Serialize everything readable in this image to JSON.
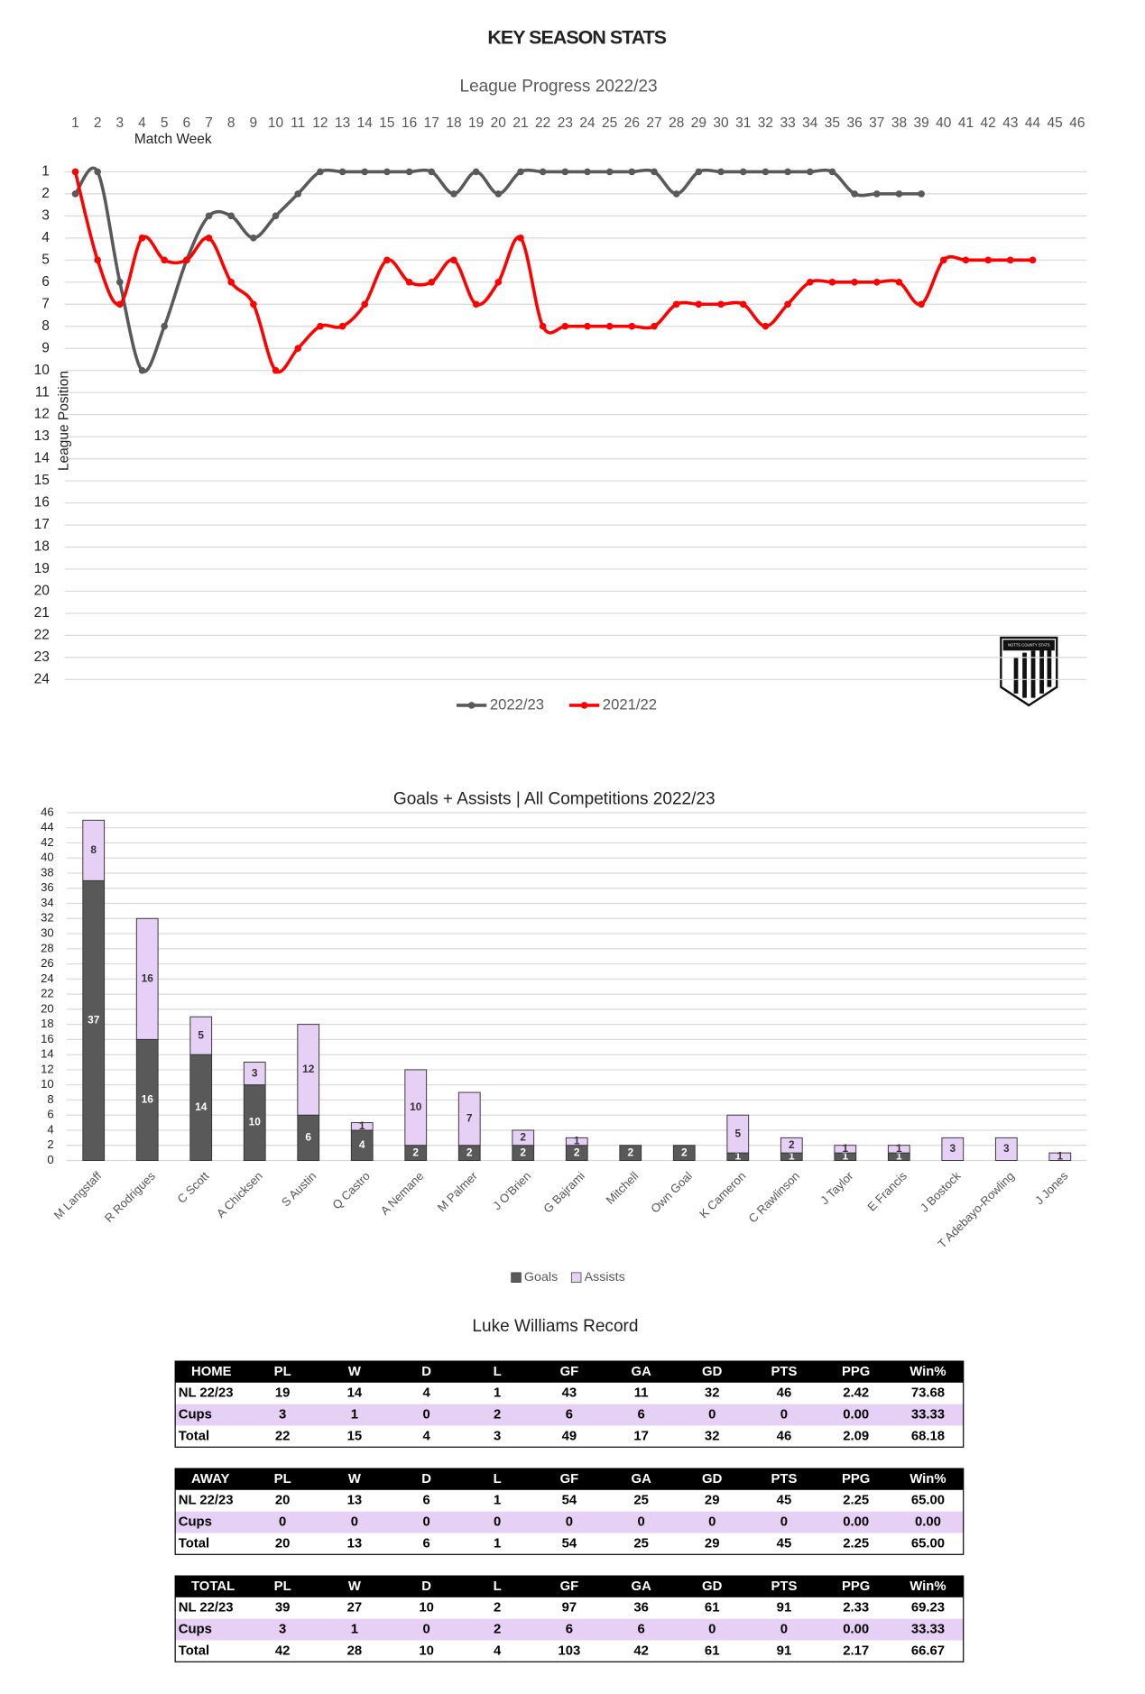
{
  "header": {
    "title": "KEY SEASON STATS"
  },
  "chart_data": [
    {
      "type": "line",
      "title": "League Progress 2022/23",
      "x_label": "Match Week",
      "y_label": "League Position",
      "categories": [
        1,
        2,
        3,
        4,
        5,
        6,
        7,
        8,
        9,
        10,
        11,
        12,
        13,
        14,
        15,
        16,
        17,
        18,
        19,
        20,
        21,
        22,
        23,
        24,
        25,
        26,
        27,
        28,
        29,
        30,
        31,
        32,
        33,
        34,
        35,
        36,
        37,
        38,
        39,
        40,
        41,
        42,
        43,
        44,
        45,
        46
      ],
      "series": [
        {
          "name": "2022/23",
          "color": "#595959",
          "values": [
            2,
            1,
            6,
            10,
            8,
            5,
            3,
            3,
            4,
            3,
            2,
            1,
            1,
            1,
            1,
            1,
            1,
            2,
            1,
            2,
            1,
            1,
            1,
            1,
            1,
            1,
            1,
            2,
            1,
            1,
            1,
            1,
            1,
            1,
            1,
            2,
            2,
            2,
            2,
            null,
            null,
            null,
            null,
            null,
            null,
            null
          ]
        },
        {
          "name": "2021/22",
          "color": "#ff0000",
          "values": [
            1,
            5,
            7,
            4,
            5,
            5,
            4,
            6,
            7,
            10,
            9,
            8,
            8,
            7,
            5,
            6,
            6,
            5,
            7,
            6,
            4,
            8,
            8,
            8,
            8,
            8,
            8,
            7,
            7,
            7,
            7,
            8,
            7,
            6,
            6,
            6,
            6,
            6,
            7,
            5,
            5,
            5,
            5,
            5,
            null,
            null
          ]
        }
      ],
      "ylim": [
        1,
        24
      ],
      "yticks": [
        1,
        2,
        3,
        4,
        5,
        6,
        7,
        8,
        9,
        10,
        11,
        12,
        13,
        14,
        15,
        16,
        17,
        18,
        19,
        20,
        21,
        22,
        23,
        24
      ],
      "y_inverted": true,
      "x_axis_position": "top",
      "grid": true,
      "legend": "bottom",
      "smooth": true
    },
    {
      "type": "stacked_bar",
      "title": "Goals + Assists | All Competitions  2022/23",
      "categories": [
        "M Langstaff",
        "R Rodrigues",
        "C Scott",
        "A Chicksen",
        "S Austin",
        "Q Castro",
        "A Nemane",
        "M Palmer",
        "J O'Brien",
        "G Bajrami",
        "Mitchell",
        "Own Goal",
        "K Cameron",
        "C Rawlinson",
        "J Taylor",
        "E Francis",
        "J Bostock",
        "T Adebayo-Rowling",
        "J Jones"
      ],
      "series": [
        {
          "name": "Goals",
          "color": "#595959",
          "label_color": "#ffffff",
          "values": [
            37,
            16,
            14,
            10,
            6,
            4,
            2,
            2,
            2,
            2,
            2,
            2,
            1,
            1,
            1,
            1,
            0,
            0,
            0
          ]
        },
        {
          "name": "Assists",
          "color": "#e6d0f5",
          "label_color": "#333333",
          "values": [
            8,
            16,
            5,
            3,
            12,
            1,
            10,
            7,
            2,
            1,
            0,
            0,
            5,
            2,
            1,
            1,
            3,
            3,
            1
          ]
        }
      ],
      "ylim": [
        0,
        46
      ],
      "yticks": [
        0,
        2,
        4,
        6,
        8,
        10,
        12,
        14,
        16,
        18,
        20,
        22,
        24,
        26,
        28,
        30,
        32,
        34,
        36,
        38,
        40,
        42,
        44,
        46
      ],
      "grid": true,
      "legend": "bottom"
    }
  ],
  "logo": {
    "text": "NOTTS COUNTY STATS"
  },
  "record": {
    "title": "Luke Williams Record",
    "tables": [
      {
        "header": [
          "HOME",
          "PL",
          "W",
          "D",
          "L",
          "GF",
          "GA",
          "GD",
          "PTS",
          "PPG",
          "Win%"
        ],
        "rows": [
          [
            "NL 22/23",
            "19",
            "14",
            "4",
            "1",
            "43",
            "11",
            "32",
            "46",
            "2.42",
            "73.68"
          ],
          [
            "Cups",
            "3",
            "1",
            "0",
            "2",
            "6",
            "6",
            "0",
            "0",
            "0.00",
            "33.33"
          ],
          [
            "Total",
            "22",
            "15",
            "4",
            "3",
            "49",
            "17",
            "32",
            "46",
            "2.09",
            "68.18"
          ]
        ]
      },
      {
        "header": [
          "AWAY",
          "PL",
          "W",
          "D",
          "L",
          "GF",
          "GA",
          "GD",
          "PTS",
          "PPG",
          "Win%"
        ],
        "rows": [
          [
            "NL 22/23",
            "20",
            "13",
            "6",
            "1",
            "54",
            "25",
            "29",
            "45",
            "2.25",
            "65.00"
          ],
          [
            "Cups",
            "0",
            "0",
            "0",
            "0",
            "0",
            "0",
            "0",
            "0",
            "0.00",
            "0.00"
          ],
          [
            "Total",
            "20",
            "13",
            "6",
            "1",
            "54",
            "25",
            "29",
            "45",
            "2.25",
            "65.00"
          ]
        ]
      },
      {
        "header": [
          "TOTAL",
          "PL",
          "W",
          "D",
          "L",
          "GF",
          "GA",
          "GD",
          "PTS",
          "PPG",
          "Win%"
        ],
        "rows": [
          [
            "NL 22/23",
            "39",
            "27",
            "10",
            "2",
            "97",
            "36",
            "61",
            "91",
            "2.33",
            "69.23"
          ],
          [
            "Cups",
            "3",
            "1",
            "0",
            "2",
            "6",
            "6",
            "0",
            "0",
            "0.00",
            "33.33"
          ],
          [
            "Total",
            "42",
            "28",
            "10",
            "4",
            "103",
            "42",
            "61",
            "91",
            "2.17",
            "66.67"
          ]
        ]
      }
    ]
  }
}
